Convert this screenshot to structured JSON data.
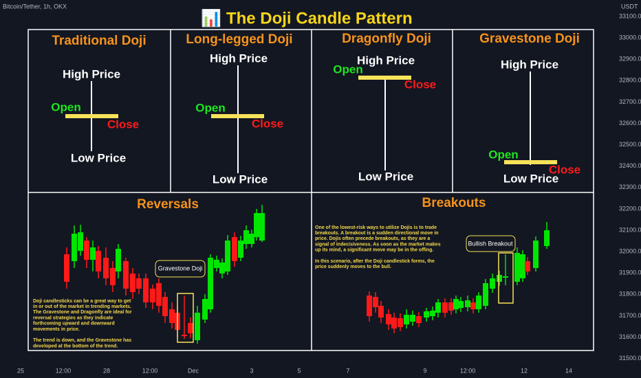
{
  "header": {
    "symbol": "Bitcoin/Tether, 1h, OKX",
    "title": "📊 The Doji Candle Pattern",
    "currency": "USDT"
  },
  "panels": [
    {
      "title": "Traditional Doji",
      "high": "High Price",
      "open": "Open",
      "close": "Close",
      "low": "Low Price"
    },
    {
      "title": "Long-legged Doji",
      "high": "High Price",
      "open": "Open",
      "close": "Close",
      "low": "Low Price"
    },
    {
      "title": "Dragonfly Doji",
      "high": "High Price",
      "open": "Open",
      "close": "Close",
      "low": "Low Price"
    },
    {
      "title": "Gravestone Doji",
      "high": "High Price",
      "open": "Open",
      "close": "Close",
      "low": "Low Price"
    }
  ],
  "reversals": {
    "title": "Reversals",
    "callout": "Gravestone Doji",
    "text": [
      "Doji candlesticks can be a great way to get",
      "in or out of the market in trending markets.",
      "The Gravestone and Dragonfly are ideal for",
      "reversal strategies as they indicate",
      "forthcoming upward and downward",
      "movements in price.",
      "",
      "The trend is down, and the Gravestone has",
      "developed at the bottom of the trend."
    ]
  },
  "breakouts": {
    "title": "Breakouts",
    "callout": "Bullish Breakout",
    "text": [
      "One of the lowest-risk ways to utilize Dojis  is to trade",
      "breakouts. A breakout is a sudden directional move in",
      "price. Dojis often precede breakouts, as they are a",
      "signal of indecisiveness. As soon as the market makes",
      "up its mind, a significant move may be in the offing.",
      "",
      "In this scenario,  after the Doji candlestick forms, the",
      "price suddenly moves to the bull."
    ]
  },
  "price_axis": [
    "33100.0",
    "33000.0",
    "32900.0",
    "32800.0",
    "32700.0",
    "32600.0",
    "32500.0",
    "32400.0",
    "32300.0",
    "32200.0",
    "32100.0",
    "32000.0",
    "31900.0",
    "31800.0",
    "31700.0",
    "31600.0",
    "31500.0"
  ],
  "time_axis": [
    "25",
    "12:00",
    "28",
    "12:00",
    "Dec",
    "3",
    "5",
    "7",
    "9",
    "12:00",
    "12",
    "14"
  ]
}
